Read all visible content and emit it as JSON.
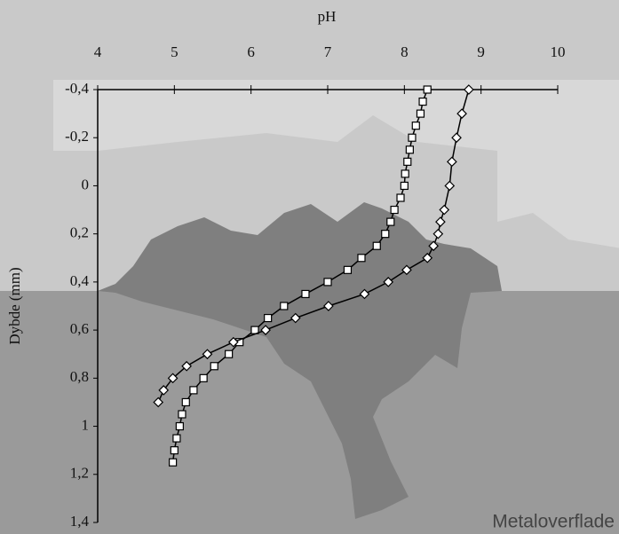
{
  "chart_data": {
    "type": "scatter-line",
    "x_label": "pH",
    "y_label": "Dybde (mm)",
    "annotation": "Metaloverflade",
    "xlim": [
      4,
      10
    ],
    "xticks": [
      4,
      5,
      6,
      7,
      8,
      9,
      10
    ],
    "ylim": [
      -0.4,
      1.4
    ],
    "y_inverted": true,
    "yticks": [
      {
        "value": -0.4,
        "label": "-0,4"
      },
      {
        "value": -0.2,
        "label": "-0,2"
      },
      0,
      {
        "value": 0.2,
        "label": "0,2"
      },
      {
        "value": 0.4,
        "label": "0,4"
      },
      {
        "value": 0.6,
        "label": "0,6"
      },
      {
        "value": 0.8,
        "label": "0,8"
      },
      1,
      {
        "value": 1.2,
        "label": "1,2"
      },
      {
        "value": 1.4,
        "label": "1,4"
      }
    ],
    "grid": false,
    "series": [
      {
        "marker": "square",
        "color": "#000000",
        "x": [
          8.3,
          8.24,
          8.21,
          8.15,
          8.1,
          8.07,
          8.04,
          8.01,
          8.0,
          7.95,
          7.87,
          7.82,
          7.75,
          7.64,
          7.44,
          7.26,
          7.0,
          6.71,
          6.43,
          6.22,
          6.05,
          5.85,
          5.71,
          5.52,
          5.38,
          5.25,
          5.15,
          5.1,
          5.07,
          5.03,
          5.0,
          4.98
        ],
        "y": [
          -0.4,
          -0.35,
          -0.3,
          -0.25,
          -0.2,
          -0.15,
          -0.1,
          -0.05,
          0,
          0.05,
          0.1,
          0.15,
          0.2,
          0.25,
          0.3,
          0.35,
          0.4,
          0.45,
          0.5,
          0.55,
          0.6,
          0.65,
          0.7,
          0.75,
          0.8,
          0.85,
          0.9,
          0.95,
          1.0,
          1.05,
          1.1,
          1.15
        ]
      },
      {
        "marker": "diamond",
        "color": "#000000",
        "x": [
          8.84,
          8.75,
          8.68,
          8.62,
          8.59,
          8.52,
          8.47,
          8.44,
          8.38,
          8.3,
          8.03,
          7.79,
          7.48,
          7.01,
          6.58,
          6.19,
          5.77,
          5.43,
          5.16,
          4.98,
          4.86,
          4.79
        ],
        "y": [
          -0.4,
          -0.3,
          -0.2,
          -0.1,
          0,
          0.1,
          0.15,
          0.2,
          0.25,
          0.3,
          0.35,
          0.4,
          0.45,
          0.5,
          0.55,
          0.6,
          0.65,
          0.7,
          0.75,
          0.8,
          0.85,
          0.9
        ]
      }
    ]
  }
}
